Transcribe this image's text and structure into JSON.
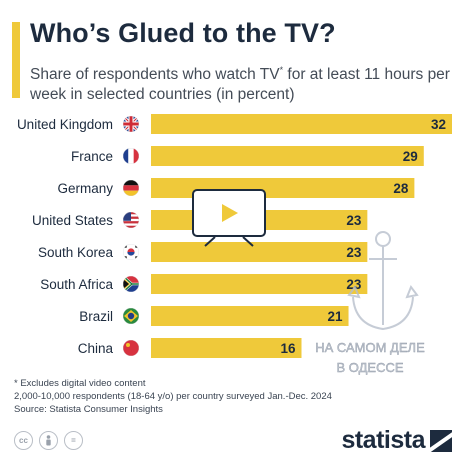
{
  "header": {
    "title": "Who’s Glued to the TV?",
    "subtitle_main": "Share of respondents who watch TV",
    "subtitle_mark": "*",
    "subtitle_rest": " for at least 11 hours per week in selected countries (in percent)"
  },
  "footer": {
    "note_1": "* Excludes digital video content",
    "note_2": "2,000-10,000 respondents (18-64 y/o) per country surveyed Jan.-Dec. 2024",
    "source": "Source: Statista Consumer Insights",
    "brand": "statista",
    "license_icons": [
      "cc-icon",
      "attribution-icon",
      "no-derivatives-icon"
    ],
    "license_labels": [
      "cc",
      "",
      "="
    ]
  },
  "watermark_lines": [
    "НА САМОМ ДЕЛЕ",
    "В ОДЕССЕ"
  ],
  "colors": {
    "bar": "#efc93a",
    "text": "#1d2b3e"
  },
  "chart_data": {
    "type": "bar",
    "orientation": "horizontal",
    "categories": [
      "United Kingdom",
      "France",
      "Germany",
      "United States",
      "South Korea",
      "South Africa",
      "Brazil",
      "China"
    ],
    "values": [
      32,
      29,
      28,
      23,
      23,
      23,
      21,
      16
    ],
    "flags": [
      "uk",
      "fr",
      "de",
      "us",
      "kr",
      "za",
      "br",
      "cn"
    ],
    "title": "Who’s Glued to the TV?",
    "xlabel": "",
    "ylabel": "",
    "xlim": [
      0,
      32
    ],
    "grid": false,
    "data_labels": true
  }
}
